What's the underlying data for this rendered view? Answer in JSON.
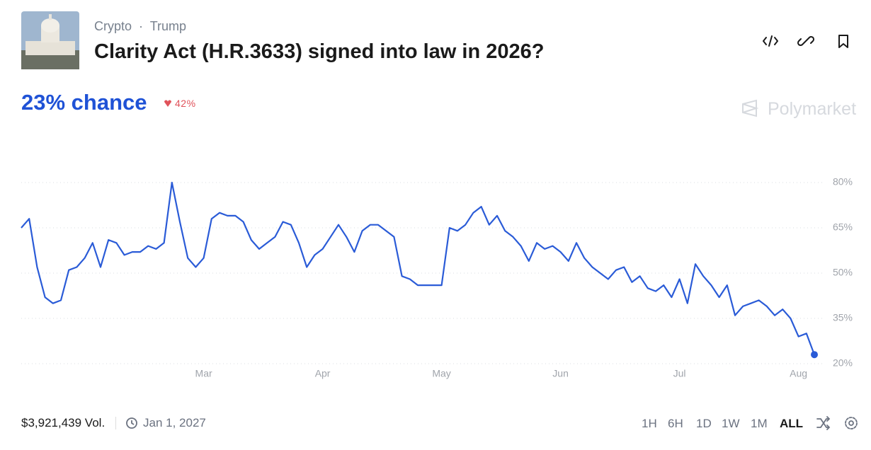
{
  "header": {
    "categories": [
      "Crypto",
      "Trump"
    ],
    "title": "Clarity Act (H.R.3633) signed into law in 2026?",
    "chance": "23% chance",
    "change": "42%",
    "brand": "Polymarket"
  },
  "chart_data": {
    "type": "line",
    "color": "#2a5bd7",
    "categories": [
      null,
      null,
      null,
      null,
      null,
      null,
      null,
      null,
      null,
      null,
      null,
      null,
      null,
      null,
      null,
      null,
      null,
      null,
      null,
      null,
      null,
      null,
      null,
      "Mar",
      null,
      null,
      null,
      null,
      null,
      null,
      null,
      null,
      null,
      null,
      null,
      null,
      null,
      null,
      "Apr",
      null,
      null,
      null,
      null,
      null,
      null,
      null,
      null,
      null,
      null,
      null,
      null,
      null,
      null,
      "May",
      null,
      null,
      null,
      null,
      null,
      null,
      null,
      null,
      null,
      null,
      null,
      null,
      null,
      null,
      "Jun",
      null,
      null,
      null,
      null,
      null,
      null,
      null,
      null,
      null,
      null,
      null,
      null,
      null,
      null,
      "Jul",
      null,
      null,
      null,
      null,
      null,
      null,
      null,
      null,
      null,
      null,
      null,
      null,
      null,
      null,
      "Aug",
      null,
      null
    ],
    "values": [
      65,
      68,
      52,
      42,
      40,
      41,
      51,
      52,
      55,
      60,
      52,
      61,
      60,
      56,
      57,
      57,
      59,
      58,
      60,
      80,
      67,
      55,
      52,
      55,
      68,
      70,
      69,
      69,
      67,
      61,
      58,
      60,
      62,
      67,
      66,
      60,
      52,
      56,
      58,
      62,
      66,
      62,
      57,
      64,
      66,
      66,
      64,
      62,
      49,
      48,
      46,
      46,
      46,
      46,
      65,
      64,
      66,
      70,
      72,
      66,
      69,
      64,
      62,
      59,
      54,
      60,
      58,
      59,
      57,
      54,
      60,
      55,
      52,
      50,
      48,
      51,
      52,
      47,
      49,
      45,
      44,
      46,
      42,
      48,
      40,
      53,
      49,
      46,
      42,
      46,
      36,
      39,
      40,
      41,
      39,
      36,
      38,
      35,
      29,
      30,
      23
    ],
    "ylim": [
      20,
      80
    ],
    "yticks": [
      {
        "value": 20,
        "label": "20%"
      },
      {
        "value": 35,
        "label": "35%"
      },
      {
        "value": 50,
        "label": "50%"
      },
      {
        "value": 65,
        "label": "65%"
      },
      {
        "value": 80,
        "label": "80%"
      }
    ],
    "grid": true
  },
  "footer": {
    "volume": "$3,921,439 Vol.",
    "end_date": "Jan 1, 2027",
    "timeframes": [
      "1H",
      "6H",
      "1D",
      "1W",
      "1M",
      "ALL"
    ]
  }
}
